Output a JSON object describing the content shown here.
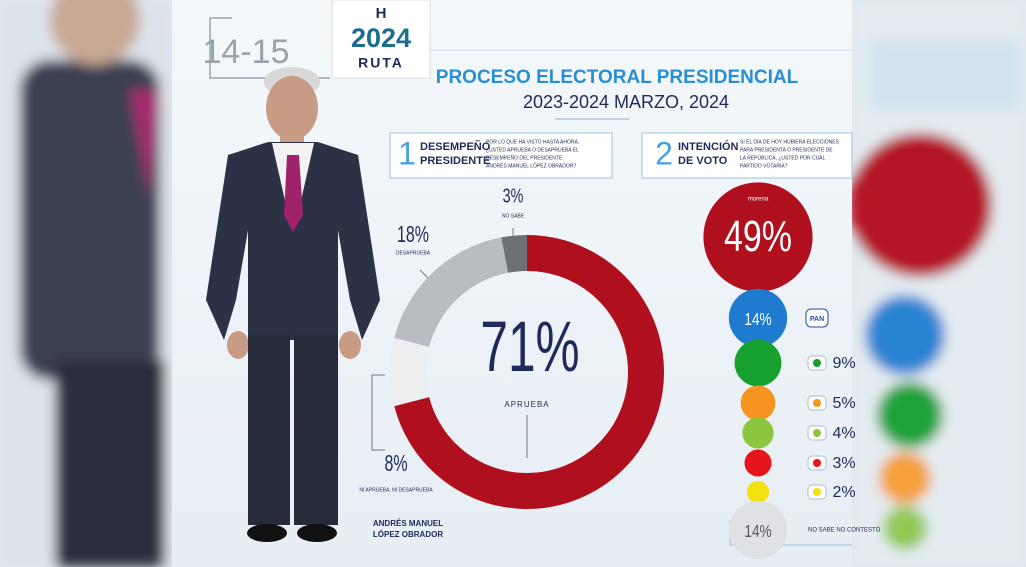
{
  "header": {
    "pages": "14-15",
    "logo_letter": "H",
    "logo_year": "2024",
    "logo_name": "RUTA",
    "title": "PROCESO ELECTORAL PRESIDENCIAL",
    "subtitle": "2023-2024 MARZO, 2024"
  },
  "sections": [
    {
      "number": "1",
      "title": [
        "DESEMPEÑO",
        "PRESIDENTE"
      ],
      "question": [
        "POR LO QUE HA VISTO HASTA AHORA,",
        "¿USTED APRUEBA O DESAPRUEBA EL",
        "DESEMPEÑO DEL PRESIDENTE",
        "ANDRÉS MANUEL LÓPEZ OBRADOR?"
      ]
    },
    {
      "number": "2",
      "title": [
        "INTENCIÓN",
        "DE VOTO"
      ],
      "question": [
        "SI EL DÍA DE HOY HUBIERA ELECCIONES",
        "PARA PRESIDENTA O PRESIDENTE DE",
        "LA REPÚBLICA, ¿USTED POR CUÁL",
        "PARTIDO VOTARÍA?"
      ]
    }
  ],
  "person": [
    "ANDRÉS MANUEL",
    "LÓPEZ OBRADOR"
  ],
  "chart_data": [
    {
      "type": "donut",
      "categories": [
        "APRUEBA",
        "NI APRUEBA, NI DESAPRUEBA",
        "DESAPRUEBA",
        "NO SABE"
      ],
      "values": [
        71,
        8,
        18,
        3
      ],
      "value_labels": [
        "71%",
        "8%",
        "18%",
        "3%"
      ],
      "colors": [
        "#b0101e",
        "#eceef0",
        "#b9bcc0",
        "#6d7176"
      ]
    },
    {
      "type": "bubble",
      "categories": [
        "morena",
        "PAN",
        null,
        null,
        null,
        null,
        null,
        "NO SABE NO CONTESTÓ"
      ],
      "values": [
        49,
        14,
        9,
        5,
        4,
        3,
        2,
        14
      ],
      "value_labels": [
        "49%",
        "14%",
        "9%",
        "5%",
        "4%",
        "3%",
        "2%",
        "14%"
      ],
      "colors": [
        "#b0101e",
        "#1f7bd0",
        "#16a02e",
        "#f5941f",
        "#8cc63e",
        "#e5151b",
        "#f2e010",
        "#dfe1e4"
      ]
    }
  ]
}
